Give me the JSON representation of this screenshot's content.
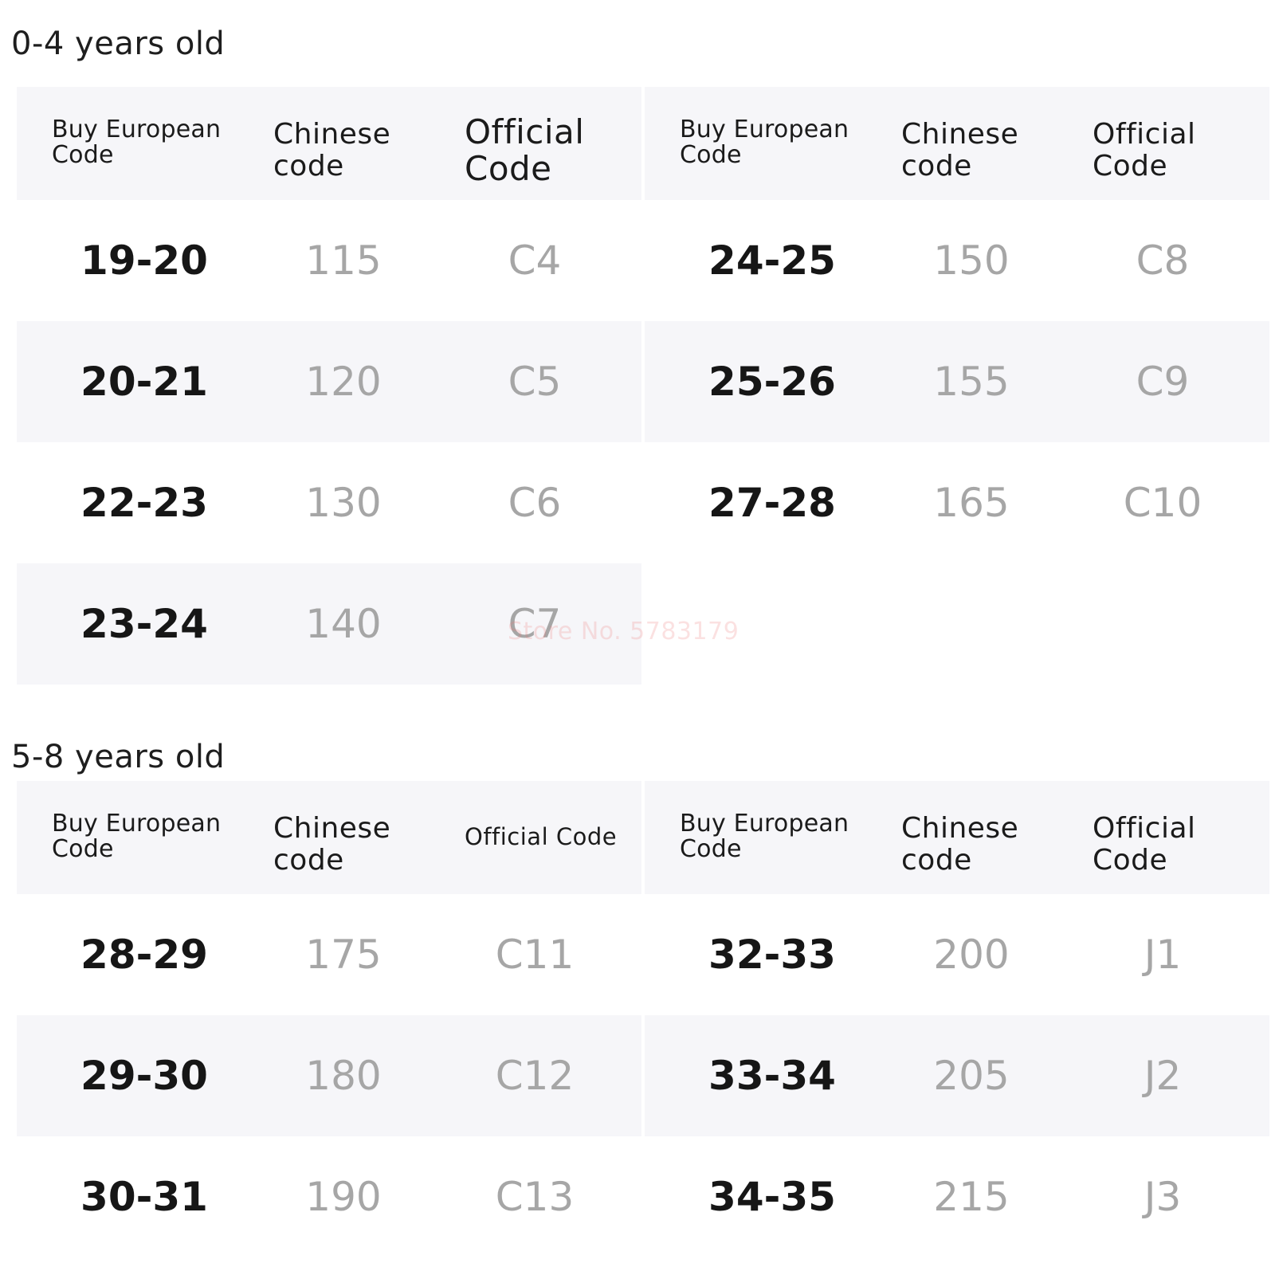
{
  "sections": [
    {
      "title": "0-4 years old",
      "tables": [
        {
          "headers": [
            "Buy European Code",
            "Chinese code",
            "Official Code"
          ],
          "rows": [
            [
              "19-20",
              "115",
              "C4"
            ],
            [
              "20-21",
              "120",
              "C5"
            ],
            [
              "22-23",
              "130",
              "C6"
            ],
            [
              "23-24",
              "140",
              "C7"
            ]
          ]
        },
        {
          "headers": [
            "Buy European Code",
            "Chinese code",
            "Official Code"
          ],
          "rows": [
            [
              "24-25",
              "150",
              "C8"
            ],
            [
              "25-26",
              "155",
              "C9"
            ],
            [
              "27-28",
              "165",
              "C10"
            ]
          ]
        }
      ]
    },
    {
      "title": "5-8 years old",
      "tables": [
        {
          "headers": [
            "Buy European Code",
            "Chinese code",
            "Official Code"
          ],
          "rows": [
            [
              "28-29",
              "175",
              "C11"
            ],
            [
              "29-30",
              "180",
              "C12"
            ],
            [
              "30-31",
              "190",
              "C13"
            ]
          ]
        },
        {
          "headers": [
            "Buy European Code",
            "Chinese code",
            "Official Code"
          ],
          "rows": [
            [
              "32-33",
              "200",
              "J1"
            ],
            [
              "33-34",
              "205",
              "J2"
            ],
            [
              "34-35",
              "215",
              "J3"
            ]
          ]
        }
      ]
    }
  ],
  "watermark": "Store No. 5783179"
}
